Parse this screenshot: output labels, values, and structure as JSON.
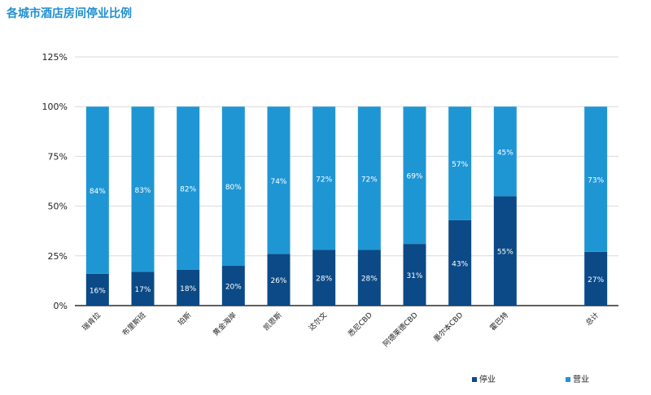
{
  "chart_data": {
    "type": "bar",
    "stacked": true,
    "percent": true,
    "title": "各城市酒店房间停业比例",
    "categories": [
      "瑞肯拉",
      "布里斯班",
      "珀斯",
      "黄金海岸",
      "凯恩斯",
      "达尔文",
      "悉尼CBD",
      "阿德莱德CBD",
      "墨尔本CBD",
      "霍巴特",
      "",
      "总计"
    ],
    "series": [
      {
        "name": "停业",
        "color": "#0b4a86",
        "values": [
          16,
          17,
          18,
          20,
          26,
          28,
          28,
          31,
          43,
          55,
          null,
          27
        ]
      },
      {
        "name": "营业",
        "color": "#1f96d4",
        "values": [
          84,
          83,
          82,
          80,
          74,
          72,
          72,
          69,
          57,
          45,
          null,
          73
        ]
      }
    ],
    "yticks": [
      "0%",
      "25%",
      "50%",
      "75%",
      "100%",
      "125%"
    ],
    "ylim": [
      0,
      125
    ],
    "grid": true,
    "legend_position": "bottom-right"
  }
}
